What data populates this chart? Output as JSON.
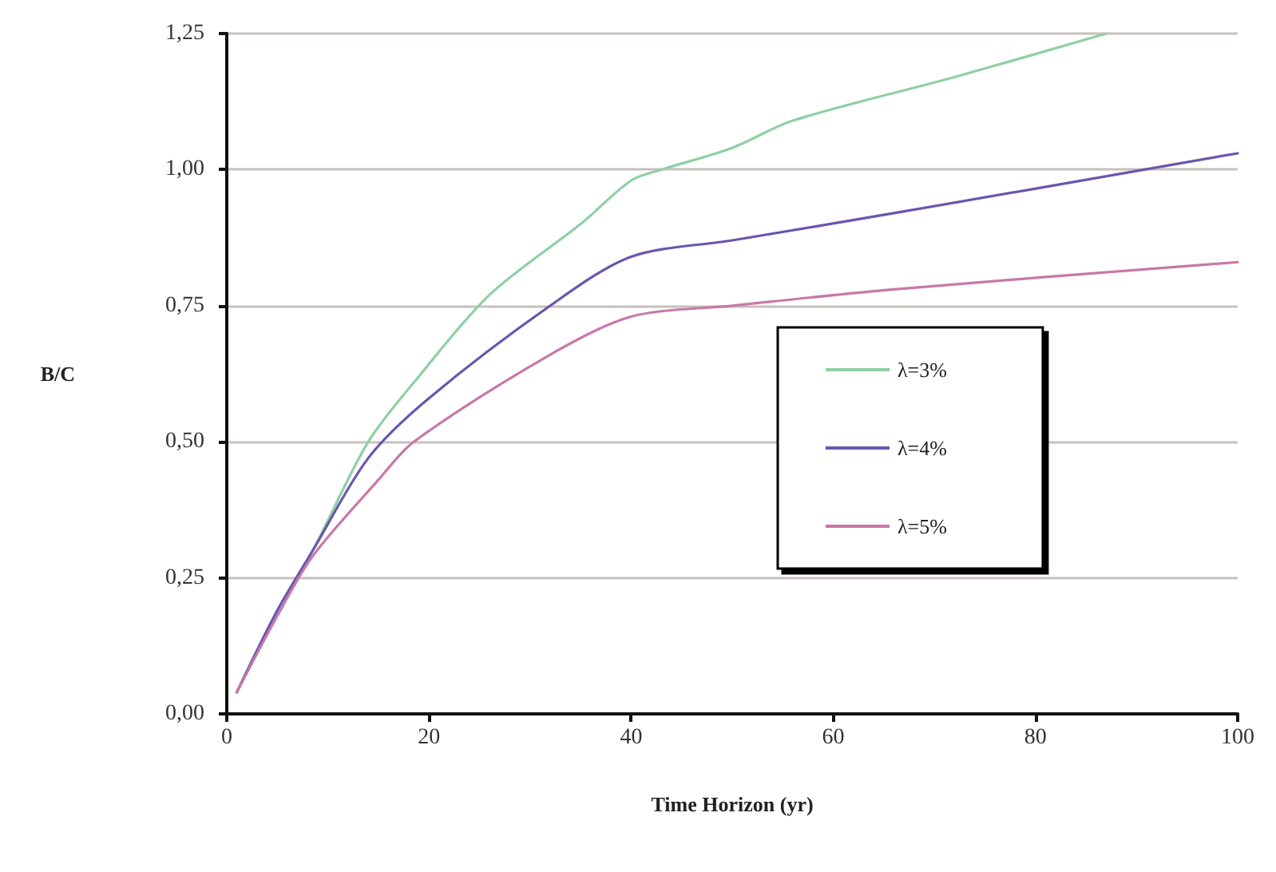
{
  "chart_data": {
    "type": "line",
    "xlabel": "Time Horizon (yr)",
    "ylabel": "B/C",
    "xlim": [
      0,
      100
    ],
    "xticks": [
      0,
      20,
      40,
      60,
      80,
      100
    ],
    "ylim": [
      0,
      1.25
    ],
    "yticks": [
      {
        "value": 0,
        "label": "0,00"
      },
      {
        "value": 0.25,
        "label": "0,25"
      },
      {
        "value": 0.5,
        "label": "0,50"
      },
      {
        "value": 0.75,
        "label": "0,75"
      },
      {
        "value": 1,
        "label": "1,00"
      },
      {
        "value": 1.25,
        "label": "1,25"
      }
    ],
    "grid": "y",
    "legend": "right",
    "marker": "none",
    "line_style": "solid",
    "series": [
      {
        "name": "λ=3%",
        "color": "#8fd0a4",
        "x": [
          1,
          5,
          8.5,
          14,
          19,
          26,
          35,
          40,
          43,
          50,
          56,
          72,
          87
        ],
        "values": [
          0.04,
          0.19,
          0.3,
          0.5,
          0.62,
          0.77,
          0.9,
          0.98,
          1.0,
          1.04,
          1.09,
          1.17,
          1.25
        ]
      },
      {
        "name": "λ=4%",
        "color": "#6a55b0",
        "x": [
          1,
          5,
          8.5,
          14,
          20,
          32,
          40,
          50,
          66,
          100
        ],
        "values": [
          0.04,
          0.19,
          0.3,
          0.47,
          0.58,
          0.75,
          0.84,
          0.87,
          0.92,
          1.03
        ]
      },
      {
        "name": "λ=5%",
        "color": "#c878a8",
        "x": [
          1,
          5,
          8.5,
          15,
          18.5,
          32,
          40,
          50,
          66,
          100
        ],
        "values": [
          0.04,
          0.18,
          0.29,
          0.43,
          0.5,
          0.66,
          0.73,
          0.75,
          0.78,
          0.83
        ]
      }
    ]
  }
}
